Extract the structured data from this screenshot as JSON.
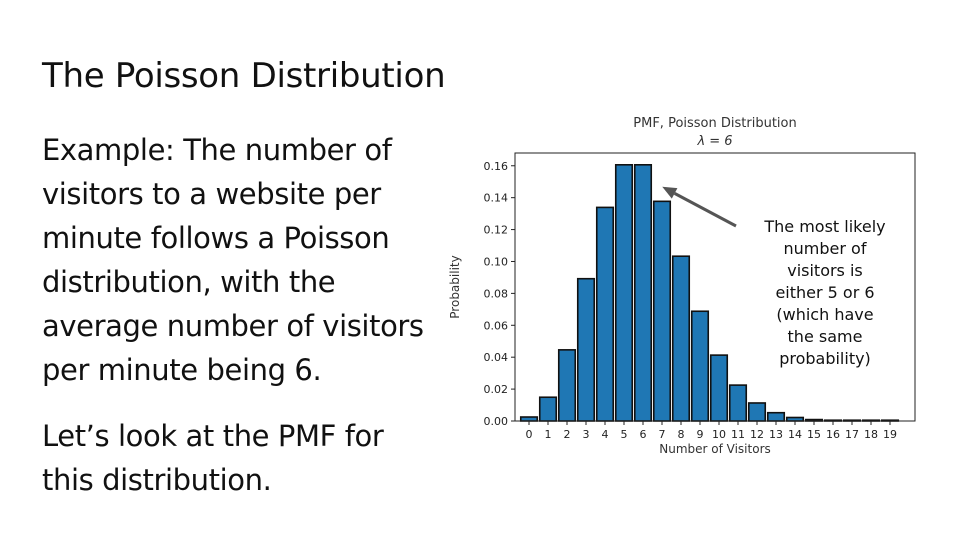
{
  "slide": {
    "title": "The Poisson Distribution",
    "paragraph1": [
      "Example: The number of",
      "visitors to a website per",
      "minute follows a Poisson",
      "distribution, with the",
      "average number of visitors",
      "per minute being 6."
    ],
    "paragraph2": [
      "Let’s look at the PMF for",
      "this distribution."
    ]
  },
  "annotation": {
    "lines": [
      "The most likely",
      "number of",
      "visitors is",
      "either 5 or 6",
      "(which have",
      "the same",
      "probability)"
    ]
  },
  "chart_data": {
    "type": "bar",
    "title": "PMF, Poisson Distribution",
    "subtitle": "λ = 6",
    "xlabel": "Number of Visitors",
    "ylabel": "Probability",
    "categories": [
      "0",
      "1",
      "2",
      "3",
      "4",
      "5",
      "6",
      "7",
      "8",
      "9",
      "10",
      "11",
      "12",
      "13",
      "14",
      "15",
      "16",
      "17",
      "18",
      "19"
    ],
    "values": [
      0.0025,
      0.0149,
      0.0446,
      0.0892,
      0.1339,
      0.1606,
      0.1606,
      0.1377,
      0.1033,
      0.0688,
      0.0413,
      0.0225,
      0.0113,
      0.0052,
      0.0022,
      0.0009,
      0.0003,
      0.0001,
      0.0,
      0.0
    ],
    "yticks": [
      "0.00",
      "0.02",
      "0.04",
      "0.06",
      "0.08",
      "0.10",
      "0.12",
      "0.14",
      "0.16"
    ],
    "ylim": [
      0,
      0.168
    ],
    "bar_color": "#1f77b4",
    "edge_color": "#111111",
    "arrow_color": "#555555",
    "arrow_target_category": "6"
  }
}
